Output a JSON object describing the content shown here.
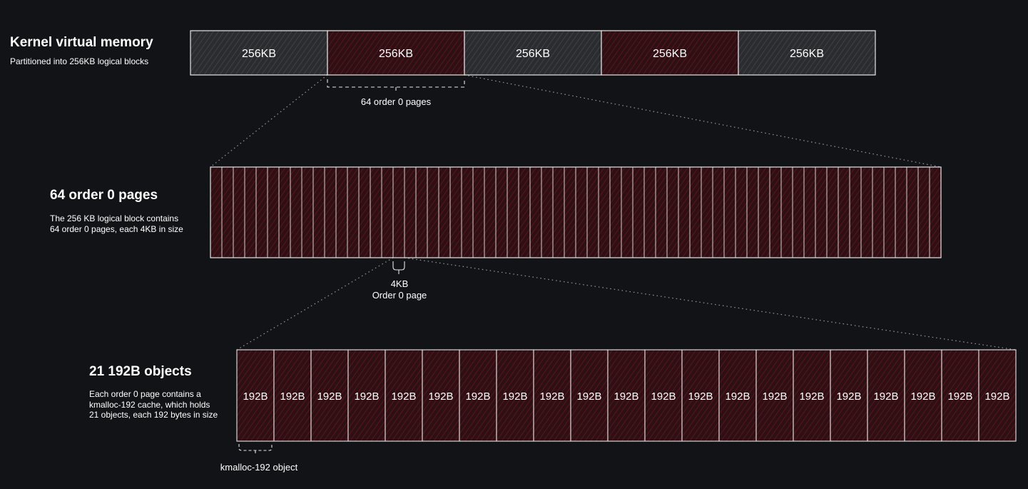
{
  "colors": {
    "background": "#121316",
    "block_gray": "#2b2c2f",
    "block_red": "#2e0f13",
    "hatch_gray": "#4a4b4f",
    "hatch_red": "#6b1a22",
    "stroke": "#e6e6e6",
    "connector": "#9a9a9a"
  },
  "kernel": {
    "title": "Kernel virtual memory",
    "description": "Partitioned into 256KB logical blocks",
    "blocks": [
      {
        "label": "256KB",
        "fill": "gray"
      },
      {
        "label": "256KB",
        "fill": "red"
      },
      {
        "label": "256KB",
        "fill": "gray"
      },
      {
        "label": "256KB",
        "fill": "red"
      },
      {
        "label": "256KB",
        "fill": "gray"
      }
    ],
    "brace_label": "64 order 0 pages"
  },
  "pages": {
    "title": "64 order 0 pages",
    "description": "The 256 KB logical block contains\n64 order 0 pages, each 4KB in size",
    "count": 64,
    "brace_label": "4KB\nOrder 0 page"
  },
  "objects": {
    "title": "21 192B objects",
    "description": "Each order 0 page contains a\nkmalloc-192 cache, which holds\n21 objects, each 192 bytes in size",
    "count": 21,
    "object_label": "192B",
    "brace_label": "kmalloc-192 object"
  }
}
